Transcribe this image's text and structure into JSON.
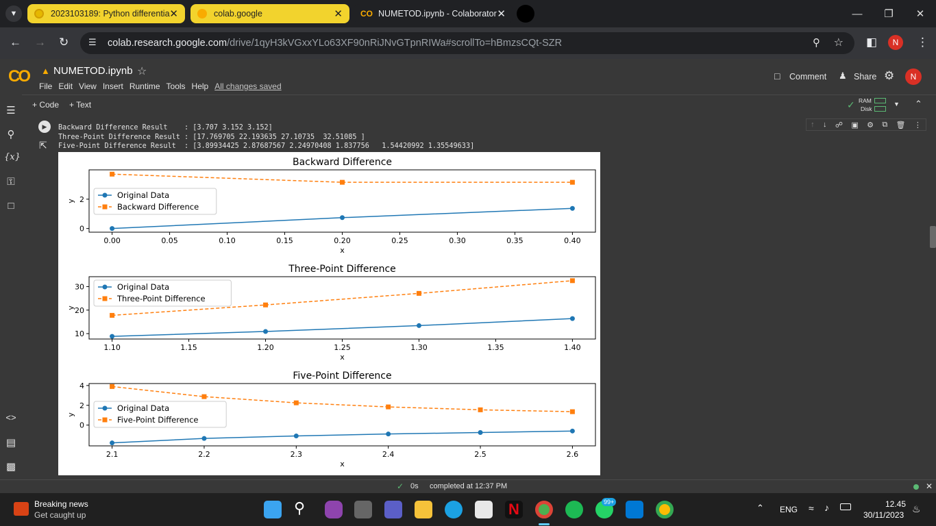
{
  "browser": {
    "tabs": [
      {
        "label": "2023103189: Python differentia",
        "active": false
      },
      {
        "label": "colab.google",
        "active": false
      },
      {
        "label": "NUMETOD.ipynb - Colaborator",
        "active": true
      }
    ],
    "url_host": "colab.research.google.com",
    "url_path": "/drive/1qyH3kVGxxYLo63XF90nRiJNvGTpnRIWa#scrollTo=hBmzsCQt-SZR",
    "profile_initial": "N"
  },
  "colab": {
    "logo": "CO",
    "notebook_title": "NUMETOD.ipynb",
    "menu": [
      "File",
      "Edit",
      "View",
      "Insert",
      "Runtime",
      "Tools",
      "Help"
    ],
    "save_status": "All changes saved",
    "comment_label": "Comment",
    "share_label": "Share",
    "add_code": "+ Code",
    "add_text": "+ Text",
    "ram_label": "RAM",
    "disk_label": "Disk"
  },
  "output": {
    "lines": [
      "Backward Difference Result    : [3.707 3.152 3.152]",
      "Three-Point Difference Result : [17.769705 22.193635 27.10735  32.51085 ]",
      "Five-Point Difference Result  : [3.89934425 2.87687567 2.24970408 1.837756   1.54420992 1.35549633]"
    ]
  },
  "chart_data": [
    {
      "type": "line",
      "title": "Backward Difference",
      "xlabel": "x",
      "ylabel": "y",
      "xlim": [
        -0.02,
        0.42
      ],
      "ylim": [
        -0.25,
        4.0
      ],
      "xticks": [
        "0.00",
        "0.05",
        "0.10",
        "0.15",
        "0.20",
        "0.25",
        "0.30",
        "0.35",
        "0.40"
      ],
      "xtick_values": [
        0,
        0.05,
        0.1,
        0.15,
        0.2,
        0.25,
        0.3,
        0.35,
        0.4
      ],
      "yticks": [
        "0",
        "2"
      ],
      "ytick_values": [
        0,
        2
      ],
      "legend": [
        "Original Data",
        "Backward Difference"
      ],
      "series": [
        {
          "name": "Original Data",
          "style": "solid-circle",
          "color": "#1f77b4",
          "x": [
            0.0,
            0.2,
            0.4
          ],
          "y": [
            0.0,
            0.741,
            1.372
          ]
        },
        {
          "name": "Backward Difference",
          "style": "dashed-square",
          "color": "#ff7f0e",
          "x": [
            0.0,
            0.2,
            0.4
          ],
          "y": [
            3.707,
            3.152,
            3.152
          ]
        }
      ]
    },
    {
      "type": "line",
      "title": "Three-Point Difference",
      "xlabel": "x",
      "ylabel": "y",
      "xlim": [
        1.085,
        1.415
      ],
      "ylim": [
        7.7,
        34.2
      ],
      "xticks": [
        "1.10",
        "1.15",
        "1.20",
        "1.25",
        "1.30",
        "1.35",
        "1.40"
      ],
      "xtick_values": [
        1.1,
        1.15,
        1.2,
        1.25,
        1.3,
        1.35,
        1.4
      ],
      "yticks": [
        "10",
        "20",
        "30"
      ],
      "ytick_values": [
        10,
        20,
        30
      ],
      "legend": [
        "Original Data",
        "Three-Point Difference"
      ],
      "series": [
        {
          "name": "Original Data",
          "style": "solid-circle",
          "color": "#1f77b4",
          "x": [
            1.1,
            1.2,
            1.3,
            1.4
          ],
          "y": [
            8.84,
            10.9,
            13.4,
            16.4
          ]
        },
        {
          "name": "Three-Point Difference",
          "style": "dashed-square",
          "color": "#ff7f0e",
          "x": [
            1.1,
            1.2,
            1.3,
            1.4
          ],
          "y": [
            17.769705,
            22.193635,
            27.10735,
            32.51085
          ]
        }
      ]
    },
    {
      "type": "line",
      "title": "Five-Point Difference",
      "xlabel": "x",
      "ylabel": "y",
      "xlim": [
        2.075,
        2.625
      ],
      "ylim": [
        -2.1,
        4.2
      ],
      "xticks": [
        "2.1",
        "2.2",
        "2.3",
        "2.4",
        "2.5",
        "2.6"
      ],
      "xtick_values": [
        2.1,
        2.2,
        2.3,
        2.4,
        2.5,
        2.6
      ],
      "yticks": [
        "0",
        "2",
        "4"
      ],
      "ytick_values": [
        0,
        2,
        4
      ],
      "legend": [
        "Original Data",
        "Five-Point Difference"
      ],
      "series": [
        {
          "name": "Original Data",
          "style": "solid-circle",
          "color": "#1f77b4",
          "x": [
            2.1,
            2.2,
            2.3,
            2.4,
            2.5,
            2.6
          ],
          "y": [
            -1.8,
            -1.35,
            -1.1,
            -0.9,
            -0.75,
            -0.6
          ]
        },
        {
          "name": "Five-Point Difference",
          "style": "dashed-square",
          "color": "#ff7f0e",
          "x": [
            2.1,
            2.2,
            2.3,
            2.4,
            2.5,
            2.6
          ],
          "y": [
            3.89934425,
            2.87687567,
            2.24970408,
            1.837756,
            1.54420992,
            1.35549633
          ]
        }
      ]
    }
  ],
  "status": {
    "elapsed": "0s",
    "completed": "completed at 12:37 PM"
  },
  "taskbar": {
    "news_title": "Breaking news",
    "news_sub": "Get caught up",
    "whatsapp_badge": "99+",
    "language": "ENG",
    "time": "12.45",
    "date": "30/11/2023"
  }
}
